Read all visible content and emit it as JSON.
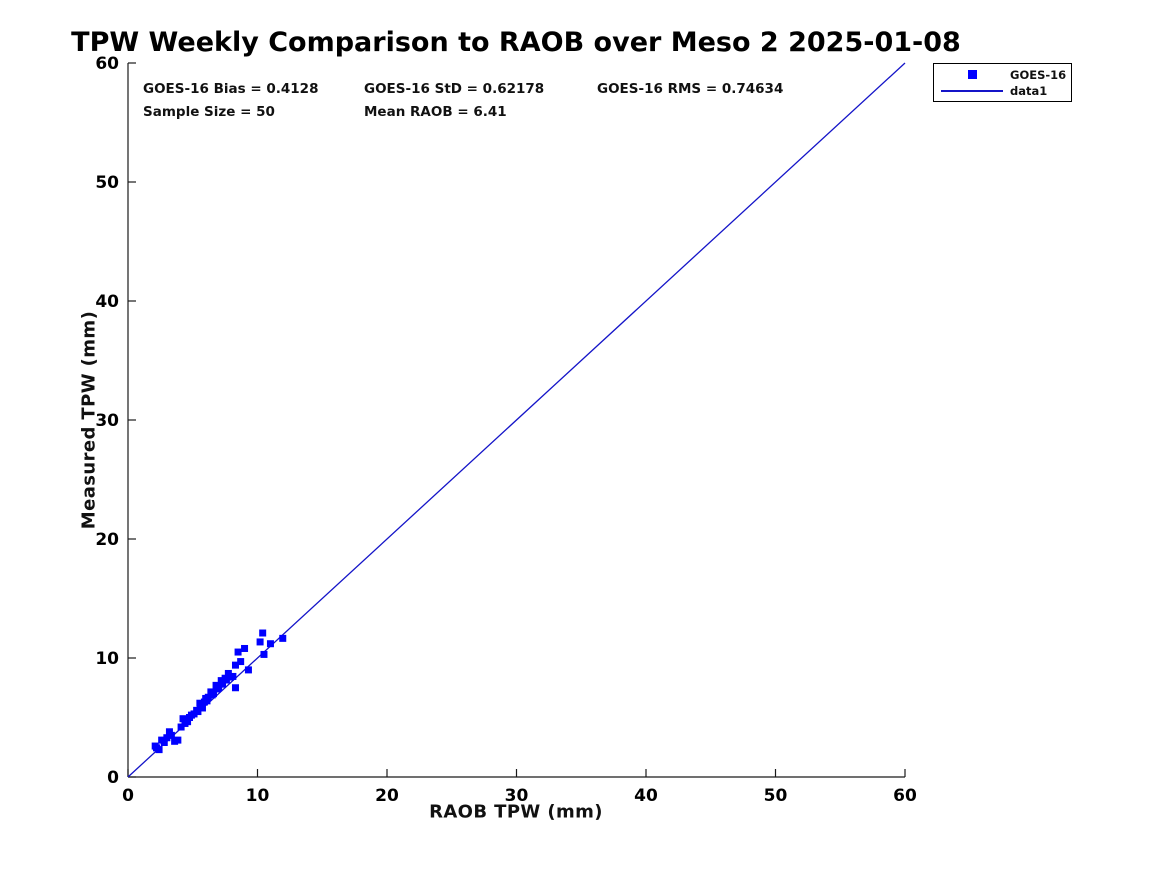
{
  "title": "TPW Weekly Comparison to RAOB over Meso 2 2025-01-08",
  "annotations": {
    "bias": "GOES-16 Bias = 0.4128",
    "std": "GOES-16 StD = 0.62178",
    "rms": "GOES-16 RMS = 0.74634",
    "sample_size": "Sample Size = 50",
    "mean_raob": "Mean RAOB = 6.41"
  },
  "legend": {
    "items": [
      {
        "label": "GOES-16",
        "swatch": "square-marker"
      },
      {
        "label": "data1",
        "swatch": "line"
      }
    ]
  },
  "colors": {
    "marker": "#0000ff",
    "line": "#1414c8",
    "axis": "#1a1a1a",
    "text": "#111111"
  },
  "chart_data": {
    "type": "scatter",
    "title": "TPW Weekly Comparison to RAOB over Meso 2 2025-01-08",
    "xlabel": "RAOB TPW (mm)",
    "ylabel": "Measured TPW (mm)",
    "xlim": [
      0,
      60
    ],
    "ylim": [
      0,
      60
    ],
    "xticks": [
      0,
      10,
      20,
      30,
      40,
      50,
      60
    ],
    "yticks": [
      0,
      10,
      20,
      30,
      40,
      50,
      60
    ],
    "grid": false,
    "legend_position": "outside-top-right",
    "series": [
      {
        "name": "GOES-16",
        "type": "scatter",
        "marker": "square",
        "color": "#0000ff",
        "points": [
          [
            2.1,
            2.6
          ],
          [
            2.2,
            2.45
          ],
          [
            2.4,
            2.3
          ],
          [
            2.6,
            3.1
          ],
          [
            2.8,
            2.9
          ],
          [
            3.0,
            3.3
          ],
          [
            3.2,
            3.8
          ],
          [
            3.35,
            3.5
          ],
          [
            3.6,
            3.0
          ],
          [
            3.85,
            3.1
          ],
          [
            4.1,
            4.2
          ],
          [
            4.25,
            4.9
          ],
          [
            4.4,
            4.5
          ],
          [
            4.6,
            4.65
          ],
          [
            4.75,
            5.0
          ],
          [
            4.9,
            5.2
          ],
          [
            5.1,
            5.3
          ],
          [
            5.3,
            5.6
          ],
          [
            5.4,
            5.5
          ],
          [
            5.55,
            6.2
          ],
          [
            5.6,
            6.0
          ],
          [
            5.75,
            5.8
          ],
          [
            5.9,
            6.3
          ],
          [
            6.0,
            6.6
          ],
          [
            6.1,
            6.4
          ],
          [
            6.2,
            6.7
          ],
          [
            6.4,
            7.15
          ],
          [
            6.5,
            6.9
          ],
          [
            6.6,
            7.0
          ],
          [
            6.8,
            7.7
          ],
          [
            6.9,
            7.4
          ],
          [
            7.0,
            7.5
          ],
          [
            7.2,
            8.1
          ],
          [
            7.3,
            7.8
          ],
          [
            7.5,
            8.3
          ],
          [
            7.6,
            8.15
          ],
          [
            7.75,
            8.7
          ],
          [
            7.9,
            8.4
          ],
          [
            8.1,
            8.45
          ],
          [
            8.3,
            7.5
          ],
          [
            8.3,
            9.4
          ],
          [
            8.5,
            10.5
          ],
          [
            8.7,
            9.7
          ],
          [
            9.0,
            10.8
          ],
          [
            9.3,
            9.0
          ],
          [
            10.2,
            11.35
          ],
          [
            10.4,
            12.1
          ],
          [
            10.5,
            10.3
          ],
          [
            11.0,
            11.2
          ],
          [
            11.95,
            11.65
          ]
        ]
      },
      {
        "name": "data1",
        "type": "line",
        "color": "#1414c8",
        "x": [
          0,
          60
        ],
        "y": [
          0,
          60
        ]
      }
    ]
  }
}
